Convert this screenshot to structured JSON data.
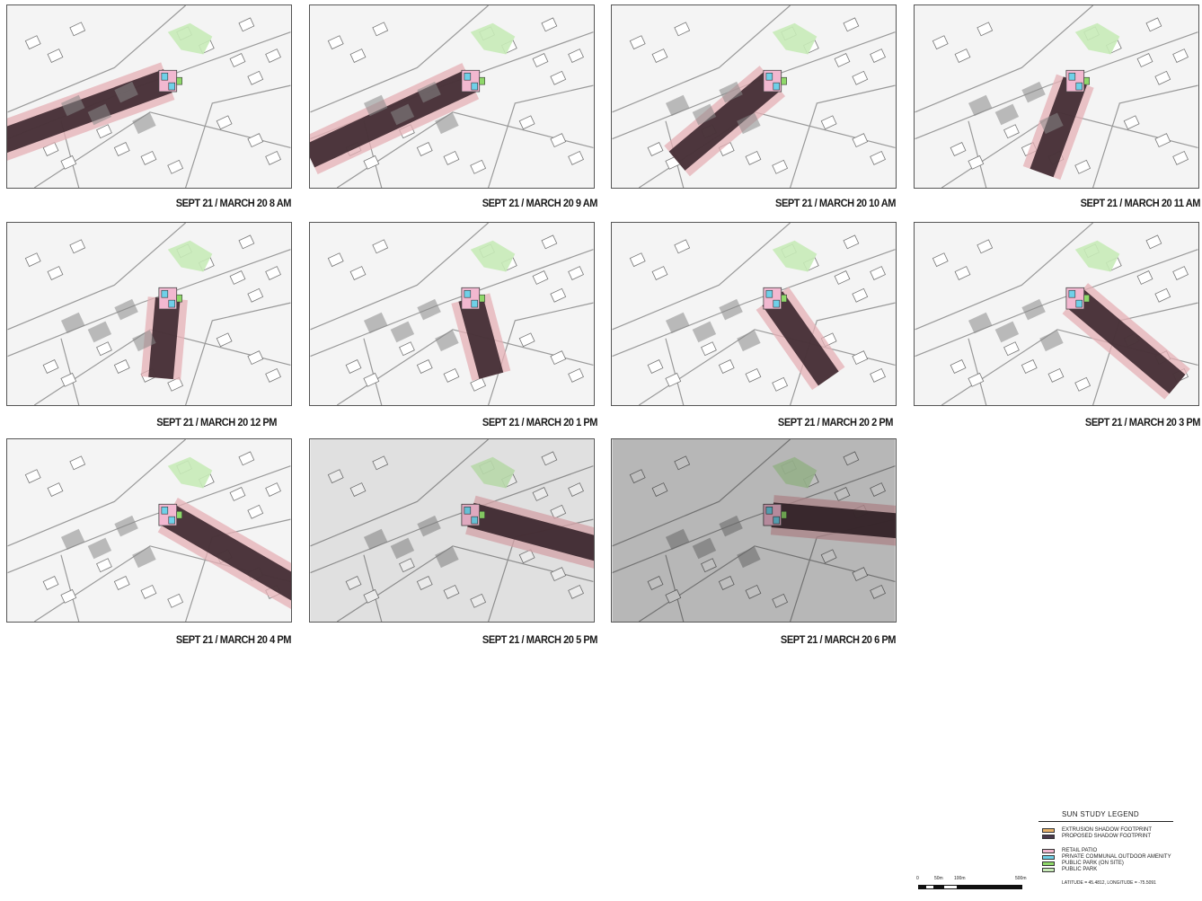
{
  "panels": [
    {
      "caption": "SEPT 21 / MARCH 20 8 AM",
      "shadow_angle": 200,
      "shadow_len": 240,
      "dark": 0.0
    },
    {
      "caption": "SEPT 21 / MARCH 20 9 AM",
      "shadow_angle": 205,
      "shadow_len": 200,
      "dark": 0.0
    },
    {
      "caption": "SEPT 21 / MARCH 20 10 AM",
      "shadow_angle": 220,
      "shadow_len": 140,
      "dark": 0.0
    },
    {
      "caption": "SEPT 21 / MARCH 20  11 AM",
      "shadow_angle": 250,
      "shadow_len": 110,
      "dark": 0.0
    },
    {
      "caption": "SEPT 21 / MARCH 20 12 PM",
      "shadow_angle": 265,
      "shadow_len": 90,
      "dark": 0.0
    },
    {
      "caption": "SEPT 21 / MARCH 20 1 PM",
      "shadow_angle": 285,
      "shadow_len": 90,
      "dark": 0.0
    },
    {
      "caption": "SEPT 21 / MARCH 20 2 PM",
      "shadow_angle": 305,
      "shadow_len": 110,
      "dark": 0.0
    },
    {
      "caption": "SEPT 21 / MARCH 20 3 PM",
      "shadow_angle": 320,
      "shadow_len": 150,
      "dark": 0.0
    },
    {
      "caption": "SEPT 21 / MARCH 20 4 PM",
      "shadow_angle": 330,
      "shadow_len": 180,
      "dark": 0.0
    },
    {
      "caption": "SEPT 21 / MARCH 20 5 PM",
      "shadow_angle": 345,
      "shadow_len": 220,
      "dark": 0.08
    },
    {
      "caption": "SEPT 21 / MARCH 20 6 PM",
      "shadow_angle": 355,
      "shadow_len": 260,
      "dark": 0.25
    }
  ],
  "legend": {
    "title": "SUN STUDY LEGEND",
    "items_a": [
      {
        "label": "EXTRUSION SHADOW FOOTPRINT",
        "color": "#e8b36a"
      },
      {
        "label": "PROPOSED SHADOW FOOTPRINT",
        "color": "#4a3a4e"
      }
    ],
    "items_b": [
      {
        "label": "RETAIL PATIO",
        "color": "#f2b8d0"
      },
      {
        "label": "PRIVATE COMMUNAL OUTDOOR AMENITY",
        "color": "#6fd0e8"
      },
      {
        "label": "PUBLIC PARK (ON SITE)",
        "color": "#8fd86a"
      },
      {
        "label": "PUBLIC PARK",
        "color": "#c8ebb8"
      }
    ],
    "coords": "LATITUDE = 45.4812, LONGITUDE = -75.5091"
  },
  "scale": {
    "l0": "0",
    "l1": "50m",
    "l2": "100m",
    "l3": "500m"
  }
}
